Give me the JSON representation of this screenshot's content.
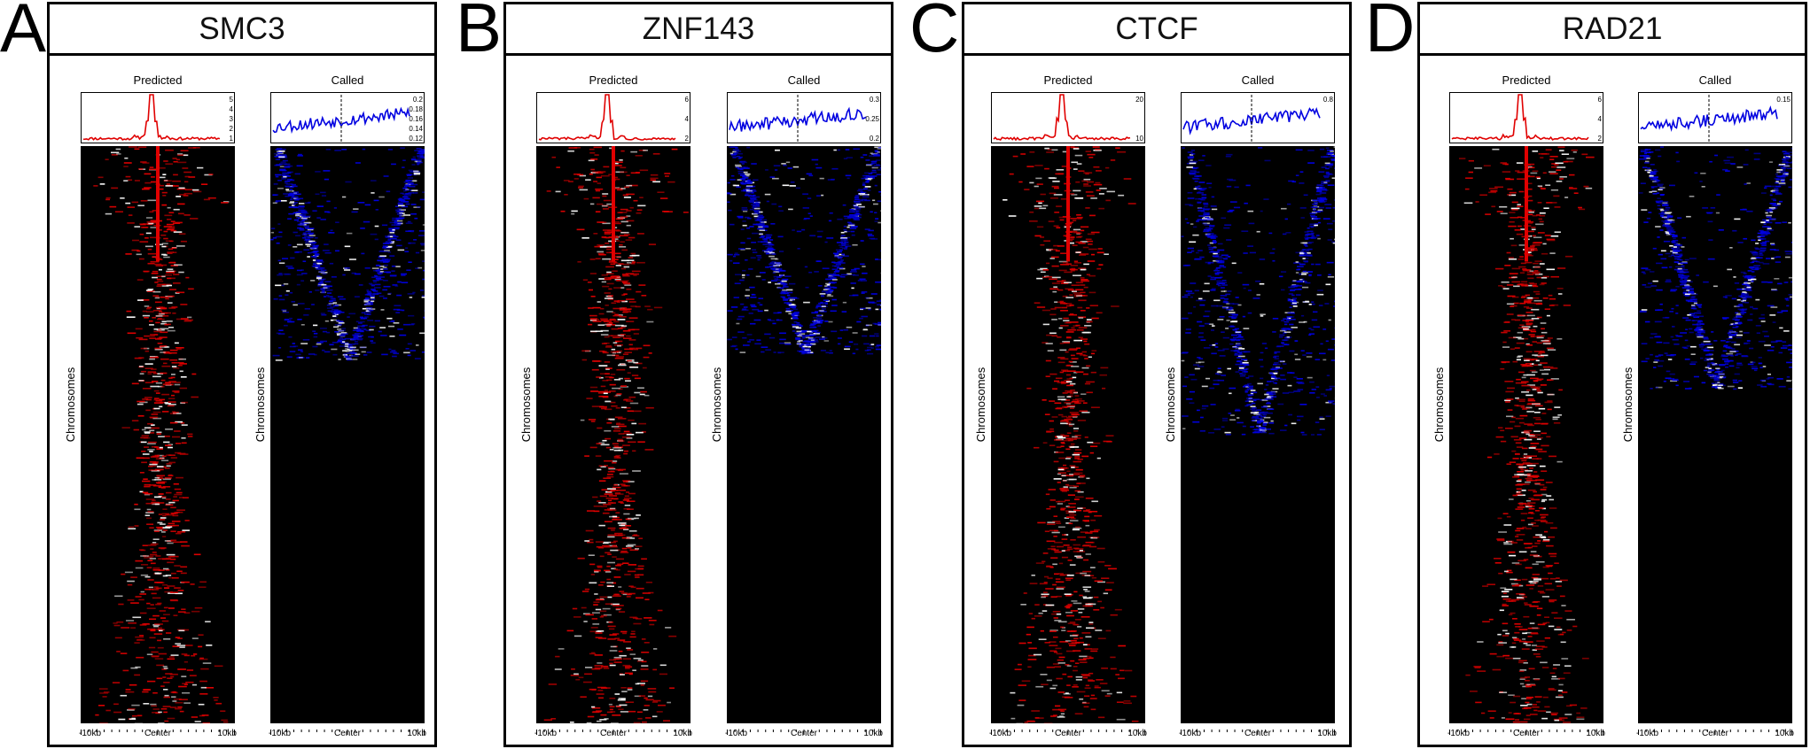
{
  "panels": [
    {
      "letter": "A",
      "title": "SMC3",
      "predicted": {
        "label": "Predicted",
        "yticks": [
          "5",
          "4",
          "3",
          "2",
          "1"
        ]
      },
      "called": {
        "label": "Called",
        "yticks": [
          "0.2",
          "0.18",
          "0.16",
          "0.14",
          "0.12"
        ]
      },
      "ylabel": "Chromosomes",
      "xticks": [
        "-10kb",
        "Center",
        "10kb"
      ]
    },
    {
      "letter": "B",
      "title": "ZNF143",
      "predicted": {
        "label": "Predicted",
        "yticks": [
          "6",
          "4",
          "2"
        ]
      },
      "called": {
        "label": "Called",
        "yticks": [
          "0.3",
          "0.25",
          "0.2"
        ]
      },
      "ylabel": "Chromosomes",
      "xticks": [
        "-10kb",
        "Center",
        "10kb"
      ]
    },
    {
      "letter": "C",
      "title": "CTCF",
      "predicted": {
        "label": "Predicted",
        "yticks": [
          "20",
          "10"
        ]
      },
      "called": {
        "label": "Called",
        "yticks": [
          "0.8"
        ]
      },
      "ylabel": "Chromosomes",
      "xticks": [
        "-10kb",
        "Center",
        "10kb"
      ]
    },
    {
      "letter": "D",
      "title": "RAD21",
      "predicted": {
        "label": "Predicted",
        "yticks": [
          "6",
          "4",
          "2"
        ]
      },
      "called": {
        "label": "Called",
        "yticks": [
          "0.15"
        ]
      },
      "ylabel": "Chromosomes",
      "xticks": [
        "-10kb",
        "Center",
        "10kb"
      ]
    }
  ],
  "chart_data": [
    {
      "type": "heatmap",
      "title": "SMC3",
      "xlabel": "",
      "ylabel": "Chromosomes",
      "x": [
        "-10kb",
        "Center",
        "10kb"
      ],
      "series": [
        {
          "name": "Predicted",
          "color": "#e00000"
        },
        {
          "name": "Called",
          "color": "#0000e0"
        }
      ]
    },
    {
      "type": "heatmap",
      "title": "ZNF143",
      "xlabel": "",
      "ylabel": "Chromosomes",
      "x": [
        "-10kb",
        "Center",
        "10kb"
      ],
      "series": [
        {
          "name": "Predicted",
          "color": "#e00000"
        },
        {
          "name": "Called",
          "color": "#0000e0"
        }
      ]
    },
    {
      "type": "heatmap",
      "title": "CTCF",
      "xlabel": "",
      "ylabel": "Chromosomes",
      "x": [
        "-10kb",
        "Center",
        "10kb"
      ],
      "series": [
        {
          "name": "Predicted",
          "color": "#e00000"
        },
        {
          "name": "Called",
          "color": "#0000e0"
        }
      ]
    },
    {
      "type": "heatmap",
      "title": "RAD21",
      "xlabel": "",
      "ylabel": "Chromosomes",
      "x": [
        "-10kb",
        "Center",
        "10kb"
      ],
      "series": [
        {
          "name": "Predicted",
          "color": "#e00000"
        },
        {
          "name": "Called",
          "color": "#0000e0"
        }
      ]
    }
  ],
  "colors": {
    "predicted": "#e00000",
    "called": "#0000e0",
    "background": "#000000",
    "highlight": "#ffffff"
  }
}
